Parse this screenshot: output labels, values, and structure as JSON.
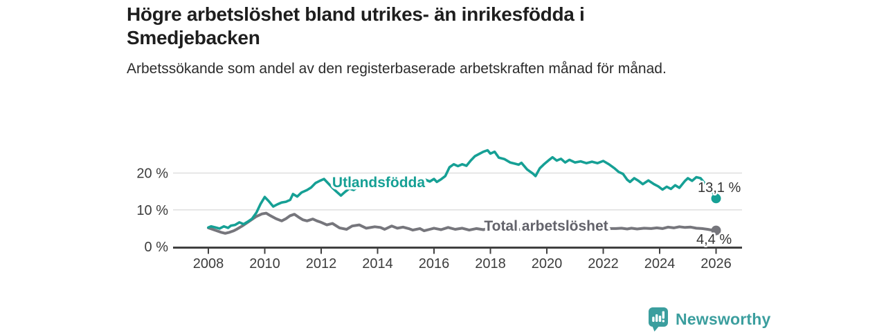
{
  "header": {
    "title": "Högre arbetslöshet bland utrikes- än inrikesfödda i Smedjebacken",
    "subtitle": "Arbetssökande som andel av den registerbaserade arbetskraften månad för månad."
  },
  "footer": {
    "brand": "Newsworthy"
  },
  "colors": {
    "accent_teal": "#16a095",
    "line_gray": "#76767c",
    "gray_label": "#63636b",
    "axis": "#404040",
    "grid": "#e0e0e0",
    "tick_text": "#3c3c3c",
    "value_text": "#333333",
    "brand_teal": "#3b9e9e"
  },
  "chart_data": {
    "type": "line",
    "xlabel": "",
    "ylabel": "",
    "xlim": [
      2008,
      2026
    ],
    "ylim": [
      0,
      27
    ],
    "grid": "horizontal",
    "x_ticks": [
      2008,
      2010,
      2012,
      2014,
      2016,
      2018,
      2020,
      2022,
      2024,
      2026
    ],
    "y_ticks": [
      {
        "v": 0,
        "label": "0 %"
      },
      {
        "v": 10,
        "label": "10 %"
      },
      {
        "v": 20,
        "label": "20 %"
      }
    ],
    "series": [
      {
        "name": "Total arbetslöshet",
        "color": "#76767c",
        "label_color": "#63636b",
        "end_label": "4,4 %",
        "points": [
          [
            2008.0,
            5.1
          ],
          [
            2008.15,
            4.7
          ],
          [
            2008.3,
            4.3
          ],
          [
            2008.45,
            3.9
          ],
          [
            2008.6,
            3.6
          ],
          [
            2008.75,
            3.9
          ],
          [
            2008.9,
            4.3
          ],
          [
            2009.0,
            4.7
          ],
          [
            2009.2,
            5.6
          ],
          [
            2009.45,
            6.9
          ],
          [
            2009.7,
            8.2
          ],
          [
            2009.9,
            8.9
          ],
          [
            2010.05,
            9.1
          ],
          [
            2010.2,
            8.4
          ],
          [
            2010.4,
            7.6
          ],
          [
            2010.6,
            7.0
          ],
          [
            2010.75,
            7.6
          ],
          [
            2010.9,
            8.4
          ],
          [
            2011.05,
            8.8
          ],
          [
            2011.2,
            8.0
          ],
          [
            2011.35,
            7.3
          ],
          [
            2011.5,
            7.0
          ],
          [
            2011.7,
            7.5
          ],
          [
            2011.85,
            7.0
          ],
          [
            2012.0,
            6.6
          ],
          [
            2012.2,
            5.9
          ],
          [
            2012.4,
            6.3
          ],
          [
            2012.65,
            5.1
          ],
          [
            2012.9,
            4.7
          ],
          [
            2013.1,
            5.6
          ],
          [
            2013.35,
            5.9
          ],
          [
            2013.6,
            5.0
          ],
          [
            2013.9,
            5.4
          ],
          [
            2014.1,
            5.2
          ],
          [
            2014.25,
            4.7
          ],
          [
            2014.5,
            5.6
          ],
          [
            2014.7,
            5.0
          ],
          [
            2014.9,
            5.3
          ],
          [
            2015.1,
            4.9
          ],
          [
            2015.25,
            4.5
          ],
          [
            2015.5,
            4.9
          ],
          [
            2015.65,
            4.3
          ],
          [
            2015.85,
            4.7
          ],
          [
            2016.0,
            5.0
          ],
          [
            2016.25,
            4.6
          ],
          [
            2016.5,
            5.2
          ],
          [
            2016.75,
            4.7
          ],
          [
            2017.0,
            5.0
          ],
          [
            2017.25,
            4.5
          ],
          [
            2017.5,
            4.9
          ],
          [
            2017.75,
            4.6
          ],
          [
            2018.0,
            5.1
          ],
          [
            2018.25,
            4.8
          ],
          [
            2018.5,
            4.6
          ],
          [
            2018.75,
            4.9
          ],
          [
            2019.0,
            4.7
          ],
          [
            2019.25,
            4.5
          ],
          [
            2019.5,
            4.7
          ],
          [
            2019.75,
            4.6
          ],
          [
            2020.0,
            5.0
          ],
          [
            2020.3,
            5.8
          ],
          [
            2020.5,
            5.6
          ],
          [
            2020.75,
            5.9
          ],
          [
            2021.0,
            5.6
          ],
          [
            2021.25,
            5.3
          ],
          [
            2021.5,
            5.1
          ],
          [
            2021.75,
            4.9
          ],
          [
            2022.0,
            4.8
          ],
          [
            2022.25,
            4.9
          ],
          [
            2022.45,
            4.9
          ],
          [
            2022.65,
            5.0
          ],
          [
            2022.85,
            4.8
          ],
          [
            2023.0,
            5.0
          ],
          [
            2023.2,
            4.8
          ],
          [
            2023.45,
            5.0
          ],
          [
            2023.7,
            4.9
          ],
          [
            2023.9,
            5.1
          ],
          [
            2024.1,
            4.9
          ],
          [
            2024.3,
            5.3
          ],
          [
            2024.5,
            5.1
          ],
          [
            2024.7,
            5.4
          ],
          [
            2024.9,
            5.2
          ],
          [
            2025.1,
            5.3
          ],
          [
            2025.3,
            5.0
          ],
          [
            2025.5,
            4.9
          ],
          [
            2025.7,
            4.7
          ],
          [
            2025.85,
            4.5
          ],
          [
            2026.0,
            4.4
          ]
        ]
      },
      {
        "name": "Utlandsfödda",
        "color": "#16a095",
        "label_color": "#16a095",
        "end_label": "13,1 %",
        "points": [
          [
            2008.0,
            5.2
          ],
          [
            2008.1,
            5.5
          ],
          [
            2008.25,
            5.2
          ],
          [
            2008.4,
            4.9
          ],
          [
            2008.55,
            5.5
          ],
          [
            2008.7,
            5.1
          ],
          [
            2008.8,
            5.7
          ],
          [
            2008.95,
            5.9
          ],
          [
            2009.1,
            6.6
          ],
          [
            2009.25,
            6.1
          ],
          [
            2009.4,
            6.8
          ],
          [
            2009.55,
            7.6
          ],
          [
            2009.7,
            9.2
          ],
          [
            2009.85,
            11.6
          ],
          [
            2010.0,
            13.5
          ],
          [
            2010.15,
            12.3
          ],
          [
            2010.3,
            10.9
          ],
          [
            2010.45,
            11.5
          ],
          [
            2010.6,
            12.0
          ],
          [
            2010.75,
            12.2
          ],
          [
            2010.9,
            12.7
          ],
          [
            2011.0,
            14.3
          ],
          [
            2011.15,
            13.6
          ],
          [
            2011.3,
            14.7
          ],
          [
            2011.5,
            15.4
          ],
          [
            2011.65,
            16.1
          ],
          [
            2011.8,
            17.3
          ],
          [
            2011.95,
            17.9
          ],
          [
            2012.1,
            18.4
          ],
          [
            2012.25,
            17.2
          ],
          [
            2012.4,
            16.0
          ],
          [
            2012.55,
            14.9
          ],
          [
            2012.7,
            13.9
          ],
          [
            2012.85,
            14.9
          ],
          [
            2013.0,
            15.8
          ],
          [
            2013.15,
            15.4
          ],
          [
            2013.3,
            16.3
          ],
          [
            2013.5,
            16.9
          ],
          [
            2013.7,
            16.4
          ],
          [
            2013.9,
            17.1
          ],
          [
            2014.1,
            17.5
          ],
          [
            2014.3,
            16.9
          ],
          [
            2014.5,
            17.7
          ],
          [
            2014.7,
            17.2
          ],
          [
            2014.9,
            17.9
          ],
          [
            2015.1,
            17.5
          ],
          [
            2015.3,
            18.1
          ],
          [
            2015.5,
            17.7
          ],
          [
            2015.7,
            18.2
          ],
          [
            2015.85,
            17.7
          ],
          [
            2016.0,
            18.4
          ],
          [
            2016.1,
            17.6
          ],
          [
            2016.25,
            18.3
          ],
          [
            2016.4,
            19.2
          ],
          [
            2016.55,
            21.6
          ],
          [
            2016.7,
            22.4
          ],
          [
            2016.85,
            21.9
          ],
          [
            2017.0,
            22.4
          ],
          [
            2017.15,
            22.0
          ],
          [
            2017.3,
            23.4
          ],
          [
            2017.45,
            24.6
          ],
          [
            2017.6,
            25.2
          ],
          [
            2017.75,
            25.8
          ],
          [
            2017.9,
            26.2
          ],
          [
            2018.0,
            25.3
          ],
          [
            2018.15,
            25.8
          ],
          [
            2018.3,
            24.2
          ],
          [
            2018.5,
            23.8
          ],
          [
            2018.7,
            22.9
          ],
          [
            2018.85,
            22.6
          ],
          [
            2019.0,
            22.3
          ],
          [
            2019.1,
            22.8
          ],
          [
            2019.3,
            21.0
          ],
          [
            2019.5,
            19.9
          ],
          [
            2019.6,
            19.2
          ],
          [
            2019.75,
            21.3
          ],
          [
            2019.9,
            22.4
          ],
          [
            2020.1,
            23.7
          ],
          [
            2020.2,
            24.3
          ],
          [
            2020.35,
            23.4
          ],
          [
            2020.5,
            23.9
          ],
          [
            2020.65,
            22.9
          ],
          [
            2020.8,
            23.6
          ],
          [
            2021.0,
            22.9
          ],
          [
            2021.2,
            23.2
          ],
          [
            2021.4,
            22.7
          ],
          [
            2021.6,
            23.1
          ],
          [
            2021.8,
            22.7
          ],
          [
            2022.0,
            23.3
          ],
          [
            2022.2,
            22.4
          ],
          [
            2022.4,
            21.3
          ],
          [
            2022.55,
            20.3
          ],
          [
            2022.7,
            19.8
          ],
          [
            2022.85,
            18.2
          ],
          [
            2022.95,
            17.6
          ],
          [
            2023.1,
            18.6
          ],
          [
            2023.25,
            17.9
          ],
          [
            2023.4,
            17.0
          ],
          [
            2023.6,
            18.0
          ],
          [
            2023.8,
            17.0
          ],
          [
            2023.95,
            16.4
          ],
          [
            2024.1,
            15.5
          ],
          [
            2024.25,
            16.3
          ],
          [
            2024.4,
            15.7
          ],
          [
            2024.55,
            16.7
          ],
          [
            2024.7,
            16.0
          ],
          [
            2024.9,
            17.9
          ],
          [
            2025.0,
            18.6
          ],
          [
            2025.15,
            17.9
          ],
          [
            2025.3,
            18.9
          ],
          [
            2025.45,
            18.6
          ],
          [
            2025.6,
            17.2
          ],
          [
            2025.75,
            16.5
          ],
          [
            2025.9,
            14.5
          ],
          [
            2026.0,
            13.1
          ]
        ]
      }
    ]
  }
}
